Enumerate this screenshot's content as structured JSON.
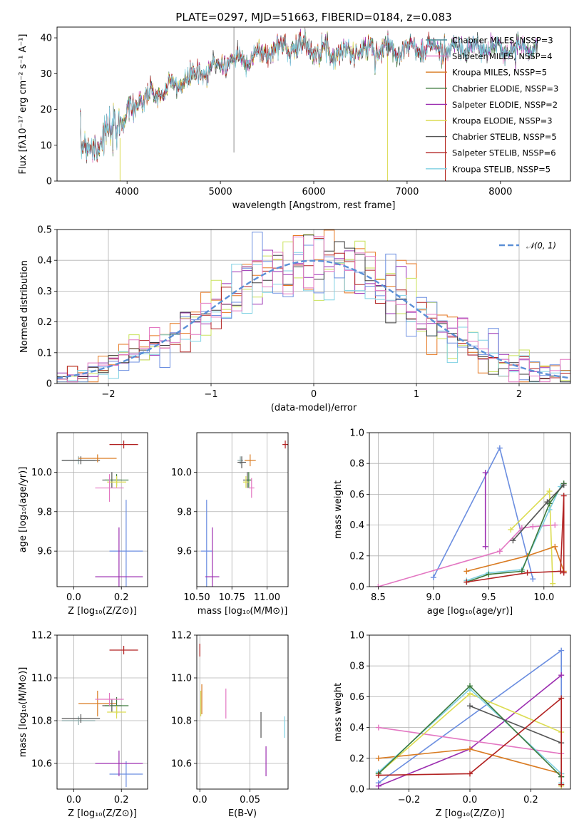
{
  "figure": {
    "title": "PLATE=0297, MJD=51663, FIBERID=0184, z=0.083"
  },
  "chart_data": [
    {
      "id": "spectrum",
      "type": "line",
      "xlabel": "wavelength [Angstrom, rest frame]",
      "ylabel": "Flux [fλ10⁻¹⁷ erg cm⁻² s⁻¹ A⁻¹]",
      "xlim": [
        3250,
        8750
      ],
      "ylim": [
        0,
        43
      ],
      "xticks": [
        4000,
        5000,
        6000,
        7000,
        8000
      ],
      "yticks": [
        0,
        10,
        20,
        30,
        40
      ],
      "grid": false,
      "legend_position": "top-right",
      "continuum": {
        "x": [
          3500,
          3700,
          3850,
          3950,
          4050,
          4200,
          4400,
          4600,
          4800,
          5000,
          5200,
          5400,
          5600,
          5800,
          6000,
          6200,
          6400,
          6600,
          6800,
          7000,
          7200,
          7400,
          7600,
          7800,
          8000,
          8200,
          8400
        ],
        "y": [
          9,
          11,
          14,
          17,
          21,
          23,
          25,
          28,
          30,
          33,
          34,
          35,
          37,
          38,
          37,
          36,
          36,
          37,
          37,
          37,
          37,
          37,
          37,
          37,
          37,
          37,
          37
        ]
      },
      "series": [
        {
          "name": "Chabrier MILES, N_SSP=3",
          "color": "#4a8a96"
        },
        {
          "name": "Salpeter MILES, N_SSP=4",
          "color": "#e377c2"
        },
        {
          "name": "Kroupa MILES, N_SSP=5",
          "color": "#d97b22"
        },
        {
          "name": "Chabrier ELODIE, N_SSP=3",
          "color": "#3c7a3c"
        },
        {
          "name": "Salpeter ELODIE, N_SSP=2",
          "color": "#9c2eb0"
        },
        {
          "name": "Kroupa ELODIE, N_SSP=3",
          "color": "#dcdc52"
        },
        {
          "name": "Chabrier STELIB, N_SSP=5",
          "color": "#555555"
        },
        {
          "name": "Salpeter STELIB, N_SSP=6",
          "color": "#b22222"
        },
        {
          "name": "Kroupa STELIB, N_SSP=5",
          "color": "#7fd1e3"
        }
      ]
    },
    {
      "id": "residuals",
      "type": "histogram",
      "xlabel": "(data-model)/error",
      "ylabel": "Normed distribution",
      "xlim": [
        -2.5,
        2.5
      ],
      "ylim": [
        0,
        0.5
      ],
      "xticks": [
        -2,
        -1,
        0,
        1,
        2
      ],
      "yticks": [
        0.0,
        0.1,
        0.2,
        0.3,
        0.4,
        0.5
      ],
      "grid": true,
      "legend_position": "top-right",
      "legend_entry": "𝒩(0, 1)",
      "model_color": "#5b8fd6",
      "bin_width": 0.1,
      "series_colors": [
        "#e6761f",
        "#9b30b3",
        "#c9e25a",
        "#b22222",
        "#7fd1e3",
        "#6b8ee0",
        "#3a3a3a",
        "#e377c2"
      ],
      "series_scatter": [
        0.05,
        0.042,
        0.047,
        0.035,
        0.045,
        0.05,
        0.036,
        0.04
      ]
    },
    {
      "id": "age-vs-z",
      "type": "errorbar",
      "xlabel": "Z [log₁₀(Z/Z⊙)]",
      "ylabel": "age  [log₁₀(age/yr)]",
      "xlim": [
        -0.07,
        0.31
      ],
      "ylim": [
        9.42,
        10.2
      ],
      "xticks": [
        0.0,
        0.2
      ],
      "yticks": [
        9.6,
        9.8,
        10.0
      ],
      "grid": true,
      "points": [
        {
          "x": 0.02,
          "y": 10.06,
          "xerr": 0.07,
          "yerr": 0.02,
          "color": "#8aa8a8"
        },
        {
          "x": 0.03,
          "y": 10.06,
          "xerr": 0.08,
          "yerr": 0.02,
          "color": "#555555"
        },
        {
          "x": 0.1,
          "y": 10.07,
          "xerr": 0.08,
          "yerr": 0.02,
          "color": "#d97b22"
        },
        {
          "x": 0.21,
          "y": 10.14,
          "xerr": 0.06,
          "yerr": 0.02,
          "color": "#b22222"
        },
        {
          "x": 0.16,
          "y": 9.96,
          "xerr": 0.04,
          "yerr": 0.04,
          "color": "#555555"
        },
        {
          "x": 0.18,
          "y": 9.96,
          "xerr": 0.05,
          "yerr": 0.03,
          "color": "#3c7a3c"
        },
        {
          "x": 0.18,
          "y": 9.95,
          "xerr": 0.04,
          "yerr": 0.03,
          "color": "#dcdc52"
        },
        {
          "x": 0.15,
          "y": 9.92,
          "xerr": 0.06,
          "yerr": 0.07,
          "color": "#e377c2"
        },
        {
          "x": 0.22,
          "y": 9.6,
          "xerr": 0.07,
          "yerr": 0.26,
          "color": "#6b8ee0"
        },
        {
          "x": 0.19,
          "y": 9.47,
          "xerr": 0.1,
          "yerr": 0.25,
          "color": "#9c2eb0"
        }
      ]
    },
    {
      "id": "age-vs-mass",
      "type": "errorbar",
      "xlabel": "mass [log₁₀(M/M⊙)]",
      "ylabel": "",
      "xlim": [
        10.5,
        11.15
      ],
      "ylim": [
        9.42,
        10.2
      ],
      "xticks": [
        10.5,
        10.75,
        11.0
      ],
      "yticks": [
        9.6,
        9.8,
        10.0
      ],
      "grid": true,
      "points": [
        {
          "x": 10.81,
          "y": 10.06,
          "xerr": 0.02,
          "yerr": 0.02,
          "color": "#8aa8a8"
        },
        {
          "x": 10.82,
          "y": 10.05,
          "xerr": 0.03,
          "yerr": 0.03,
          "color": "#555555"
        },
        {
          "x": 10.88,
          "y": 10.06,
          "xerr": 0.04,
          "yerr": 0.03,
          "color": "#d97b22"
        },
        {
          "x": 11.13,
          "y": 10.14,
          "xerr": 0.02,
          "yerr": 0.02,
          "color": "#b22222"
        },
        {
          "x": 10.86,
          "y": 9.96,
          "xerr": 0.03,
          "yerr": 0.04,
          "color": "#555555"
        },
        {
          "x": 10.87,
          "y": 9.96,
          "xerr": 0.02,
          "yerr": 0.04,
          "color": "#3c7a3c"
        },
        {
          "x": 10.85,
          "y": 9.95,
          "xerr": 0.02,
          "yerr": 0.03,
          "color": "#dcdc52"
        },
        {
          "x": 10.89,
          "y": 9.92,
          "xerr": 0.02,
          "yerr": 0.05,
          "color": "#e377c2"
        },
        {
          "x": 10.57,
          "y": 9.6,
          "xerr": 0.04,
          "yerr": 0.26,
          "color": "#6b8ee0"
        },
        {
          "x": 10.61,
          "y": 9.47,
          "xerr": 0.05,
          "yerr": 0.25,
          "color": "#9c2eb0"
        }
      ]
    },
    {
      "id": "weight-vs-age",
      "type": "line",
      "xlabel": "age  [log₁₀(age/yr)]",
      "ylabel": "mass weight",
      "xlim": [
        8.42,
        10.24
      ],
      "ylim": [
        0,
        1
      ],
      "xticks": [
        8.5,
        9.0,
        9.5,
        10.0
      ],
      "yticks": [
        0.0,
        0.2,
        0.4,
        0.6,
        0.8,
        1.0
      ],
      "grid": true,
      "series": [
        {
          "color": "#6b8ee0",
          "x": [
            9.0,
            9.6,
            9.9
          ],
          "y": [
            0.06,
            0.9,
            0.05
          ]
        },
        {
          "color": "#9c2eb0",
          "x": [
            9.47,
            9.47
          ],
          "y": [
            0.26,
            0.74
          ]
        },
        {
          "color": "#e377c2",
          "x": [
            8.5,
            9.6,
            9.8,
            9.9,
            10.1
          ],
          "y": [
            0.0,
            0.23,
            0.38,
            0.39,
            0.4
          ]
        },
        {
          "color": "#dcdc52",
          "x": [
            9.7,
            10.05,
            10.08
          ],
          "y": [
            0.37,
            0.62,
            0.02
          ]
        },
        {
          "color": "#d97b22",
          "x": [
            9.3,
            9.85,
            10.1,
            10.18
          ],
          "y": [
            0.1,
            0.2,
            0.26,
            0.1
          ]
        },
        {
          "color": "#7fd1e3",
          "x": [
            9.3,
            9.5,
            9.8,
            10.05,
            10.15
          ],
          "y": [
            0.04,
            0.09,
            0.11,
            0.5,
            0.65
          ]
        },
        {
          "color": "#3c7a3c",
          "x": [
            9.3,
            9.5,
            9.8,
            10.05,
            10.18
          ],
          "y": [
            0.03,
            0.08,
            0.1,
            0.54,
            0.67
          ]
        },
        {
          "color": "#555555",
          "x": [
            9.72,
            10.03,
            10.18
          ],
          "y": [
            0.3,
            0.55,
            0.66
          ]
        },
        {
          "color": "#b22222",
          "x": [
            9.3,
            9.85,
            10.15,
            10.18,
            10.18
          ],
          "y": [
            0.03,
            0.09,
            0.1,
            0.59,
            0.09
          ]
        }
      ]
    },
    {
      "id": "mass-vs-z",
      "type": "errorbar",
      "xlabel": "Z [log₁₀(Z/Z⊙)]",
      "ylabel": "mass [log₁₀(M/M⊙)]",
      "xlim": [
        -0.07,
        0.31
      ],
      "ylim": [
        10.48,
        11.2
      ],
      "xticks": [
        0.0,
        0.2
      ],
      "yticks": [
        10.6,
        10.8,
        11.0,
        11.2
      ],
      "grid": true,
      "points": [
        {
          "x": 0.02,
          "y": 10.8,
          "xerr": 0.07,
          "yerr": 0.02,
          "color": "#8aa8a8"
        },
        {
          "x": 0.03,
          "y": 10.81,
          "xerr": 0.08,
          "yerr": 0.02,
          "color": "#555555"
        },
        {
          "x": 0.1,
          "y": 10.88,
          "xerr": 0.08,
          "yerr": 0.06,
          "color": "#d97b22"
        },
        {
          "x": 0.21,
          "y": 11.13,
          "xerr": 0.06,
          "yerr": 0.02,
          "color": "#b22222"
        },
        {
          "x": 0.16,
          "y": 10.87,
          "xerr": 0.04,
          "yerr": 0.03,
          "color": "#555555"
        },
        {
          "x": 0.18,
          "y": 10.87,
          "xerr": 0.05,
          "yerr": 0.04,
          "color": "#3c7a3c"
        },
        {
          "x": 0.18,
          "y": 10.84,
          "xerr": 0.04,
          "yerr": 0.03,
          "color": "#dcdc52"
        },
        {
          "x": 0.15,
          "y": 10.9,
          "xerr": 0.06,
          "yerr": 0.03,
          "color": "#e377c2"
        },
        {
          "x": 0.22,
          "y": 10.55,
          "xerr": 0.07,
          "yerr": 0.06,
          "color": "#6b8ee0"
        },
        {
          "x": 0.19,
          "y": 10.6,
          "xerr": 0.1,
          "yerr": 0.06,
          "color": "#9c2eb0"
        }
      ]
    },
    {
      "id": "mass-vs-ebv",
      "type": "errorbar",
      "xlabel": "E(B-V)",
      "ylabel": "",
      "xlim": [
        -0.003,
        0.088
      ],
      "ylim": [
        10.48,
        11.2
      ],
      "xticks": [
        0.0,
        0.05
      ],
      "yticks": [
        10.6,
        10.8,
        11.0,
        11.2
      ],
      "grid": true,
      "points": [
        {
          "x": 0.0,
          "y": 11.13,
          "xerr": 0.0,
          "yerr": 0.03,
          "color": "#b22222"
        },
        {
          "x": 0.001,
          "y": 10.88,
          "xerr": 0.0,
          "yerr": 0.06,
          "color": "#dcdc52"
        },
        {
          "x": 0.002,
          "y": 10.9,
          "xerr": 0.0,
          "yerr": 0.07,
          "color": "#d97b22"
        },
        {
          "x": 0.026,
          "y": 10.88,
          "xerr": 0.0,
          "yerr": 0.07,
          "color": "#e377c2"
        },
        {
          "x": 0.061,
          "y": 10.78,
          "xerr": 0.0,
          "yerr": 0.06,
          "color": "#555555"
        },
        {
          "x": 0.066,
          "y": 10.61,
          "xerr": 0.0,
          "yerr": 0.07,
          "color": "#9c2eb0"
        },
        {
          "x": 0.0845,
          "y": 10.77,
          "xerr": 0.0,
          "yerr": 0.05,
          "color": "#7fd1e3"
        }
      ]
    },
    {
      "id": "weight-vs-z",
      "type": "line",
      "xlabel": "Z [log₁₀(Z/Z⊙)]",
      "ylabel": "mass weight",
      "xlim": [
        -0.33,
        0.33
      ],
      "ylim": [
        0,
        1
      ],
      "xticks": [
        -0.2,
        0.0,
        0.2
      ],
      "yticks": [
        0.0,
        0.2,
        0.4,
        0.6,
        0.8,
        1.0
      ],
      "grid": true,
      "series": [
        {
          "color": "#6b8ee0",
          "x": [
            -0.3,
            0.3,
            0.3
          ],
          "y": [
            0.04,
            0.9,
            0.08
          ]
        },
        {
          "color": "#9c2eb0",
          "x": [
            -0.3,
            0.0,
            0.3
          ],
          "y": [
            0.02,
            0.26,
            0.74
          ]
        },
        {
          "color": "#e377c2",
          "x": [
            -0.3,
            0.3
          ],
          "y": [
            0.4,
            0.23
          ]
        },
        {
          "color": "#dcdc52",
          "x": [
            -0.3,
            0.0,
            0.3,
            0.3
          ],
          "y": [
            0.1,
            0.62,
            0.37,
            0.02
          ]
        },
        {
          "color": "#d97b22",
          "x": [
            -0.3,
            0.0,
            0.3
          ],
          "y": [
            0.2,
            0.26,
            0.1
          ]
        },
        {
          "color": "#7fd1e3",
          "x": [
            -0.3,
            0.0,
            0.3,
            0.3
          ],
          "y": [
            0.11,
            0.65,
            0.1,
            0.04
          ]
        },
        {
          "color": "#3c7a3c",
          "x": [
            -0.3,
            0.0,
            0.3,
            0.3
          ],
          "y": [
            0.1,
            0.67,
            0.08,
            0.03
          ]
        },
        {
          "color": "#555555",
          "x": [
            0.0,
            0.3
          ],
          "y": [
            0.54,
            0.3
          ]
        },
        {
          "color": "#b22222",
          "x": [
            -0.3,
            0.0,
            0.3,
            0.3
          ],
          "y": [
            0.09,
            0.1,
            0.59,
            0.03
          ]
        }
      ]
    }
  ]
}
